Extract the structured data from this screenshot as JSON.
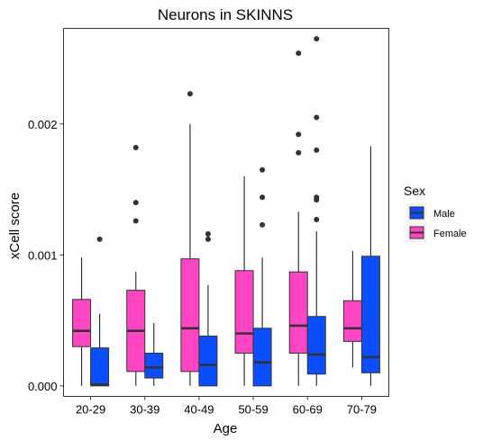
{
  "chart_data": {
    "type": "boxplot",
    "title": "Neurons in SKINNS",
    "xlabel": "Age",
    "ylabel": "xCell score",
    "ylim": [
      -8e-05,
      0.00273
    ],
    "y_ticks": [
      {
        "value": 0.0,
        "label": "0.000"
      },
      {
        "value": 0.001,
        "label": "0.001"
      },
      {
        "value": 0.002,
        "label": "0.002"
      }
    ],
    "grid": false,
    "legend": {
      "title": "Sex",
      "position": "right",
      "entries": [
        {
          "label": "Male",
          "color": "#0b4eff"
        },
        {
          "label": "Female",
          "color": "#ff44c4"
        }
      ]
    },
    "categories": [
      "20-29",
      "30-39",
      "40-49",
      "50-59",
      "60-69",
      "70-79"
    ],
    "series": [
      {
        "name": "Female",
        "color": "#ff44c4",
        "boxes": [
          {
            "whisker_low": 0.0,
            "q1": 0.0003,
            "median": 0.00042,
            "q3": 0.00066,
            "whisker_high": 0.00098,
            "outliers": []
          },
          {
            "whisker_low": 0.0,
            "q1": 0.00011,
            "median": 0.00042,
            "q3": 0.00073,
            "whisker_high": 0.00087,
            "outliers": [
              0.00182,
              0.0014,
              0.00126
            ]
          },
          {
            "whisker_low": 0.0,
            "q1": 0.00011,
            "median": 0.00044,
            "q3": 0.00097,
            "whisker_high": 0.002,
            "outliers": [
              0.00223
            ]
          },
          {
            "whisker_low": 0.0,
            "q1": 0.00025,
            "median": 0.0004,
            "q3": 0.00088,
            "whisker_high": 0.0016,
            "outliers": []
          },
          {
            "whisker_low": 0.0,
            "q1": 0.00025,
            "median": 0.00046,
            "q3": 0.00087,
            "whisker_high": 0.00133,
            "outliers": [
              0.00254,
              0.00192,
              0.00178
            ]
          },
          {
            "whisker_low": 0.00014,
            "q1": 0.00034,
            "median": 0.00044,
            "q3": 0.00065,
            "whisker_high": 0.00103,
            "outliers": []
          }
        ]
      },
      {
        "name": "Male",
        "color": "#0b4eff",
        "boxes": [
          {
            "whisker_low": 0.0,
            "q1": 0.0,
            "median": 1e-05,
            "q3": 0.00029,
            "whisker_high": 0.00055,
            "outliers": [
              0.00112
            ]
          },
          {
            "whisker_low": 0.0,
            "q1": 6e-05,
            "median": 0.00014,
            "q3": 0.00025,
            "whisker_high": 0.00048,
            "outliers": []
          },
          {
            "whisker_low": 0.0,
            "q1": 0.0,
            "median": 0.00016,
            "q3": 0.00038,
            "whisker_high": 0.00077,
            "outliers": [
              0.00116,
              0.00112
            ]
          },
          {
            "whisker_low": 0.0,
            "q1": 0.0,
            "median": 0.00018,
            "q3": 0.00044,
            "whisker_high": 0.00098,
            "outliers": [
              0.00165,
              0.00144,
              0.00123
            ]
          },
          {
            "whisker_low": 0.0,
            "q1": 9e-05,
            "median": 0.00024,
            "q3": 0.00053,
            "whisker_high": 0.00118,
            "outliers": [
              0.00265,
              0.00205,
              0.0018,
              0.00144,
              0.00142,
              0.00127
            ]
          },
          {
            "whisker_low": 0.0,
            "q1": 0.0001,
            "median": 0.00022,
            "q3": 0.00099,
            "whisker_high": 0.00183,
            "outliers": []
          }
        ]
      }
    ]
  }
}
